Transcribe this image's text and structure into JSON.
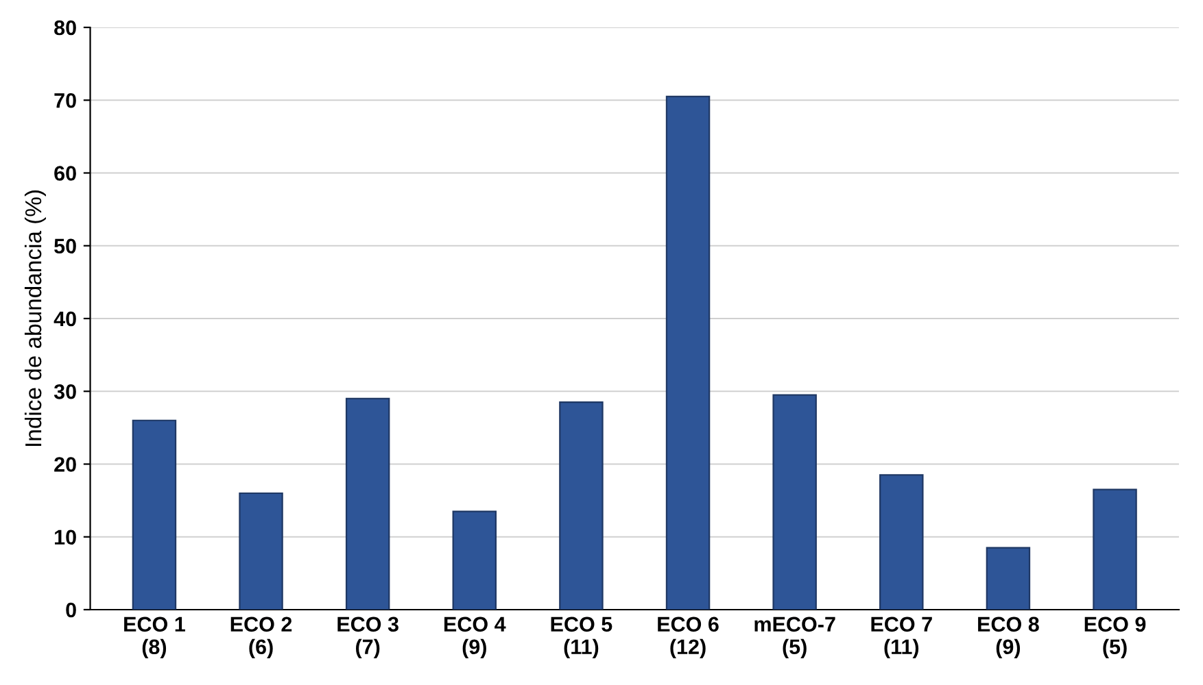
{
  "chart_data": {
    "type": "bar",
    "ylabel": "Indice de abundancia (%)",
    "categories": [
      "ECO 1\n(8)",
      "ECO 2\n(6)",
      "ECO 3\n(7)",
      "ECO 4\n(9)",
      "ECO 5\n(11)",
      "ECO 6\n(12)",
      "mECO-7\n(5)",
      "ECO 7\n(11)",
      "ECO 8\n(9)",
      "ECO 9\n(5)"
    ],
    "values": [
      26,
      16,
      29,
      13.5,
      28.5,
      70.5,
      29.5,
      18.5,
      8.5,
      16.5
    ],
    "color": "#2e5597",
    "ylim": [
      0,
      80
    ],
    "yticks": [
      0,
      10,
      20,
      30,
      40,
      50,
      60,
      70,
      80
    ],
    "grid": "y"
  }
}
